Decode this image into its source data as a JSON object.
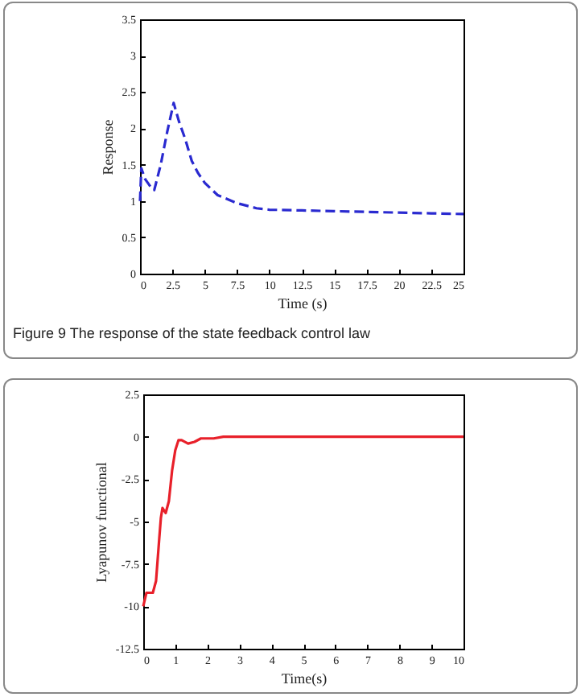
{
  "chart_data": [
    {
      "type": "line",
      "xlabel": "Time (s)",
      "ylabel": "Response",
      "annotations": [
        "Figure 9  The response of the state feedback control law"
      ],
      "xlim": [
        0,
        25
      ],
      "ylim": [
        0,
        3.5
      ],
      "xticks": [
        0,
        2.5,
        5,
        7.5,
        10,
        12.5,
        15,
        17.5,
        20,
        22.5,
        25
      ],
      "yticks": [
        0,
        0.5,
        1,
        1.5,
        2,
        2.5,
        3,
        3.5
      ],
      "grid": false,
      "line_style": "dashed",
      "series": [
        {
          "color": "#2a2ad0",
          "x": [
            0,
            0.1,
            0.4,
            0.8,
            1.1,
            1.6,
            2.1,
            2.6,
            3.0,
            3.5,
            4.0,
            4.5,
            5.0,
            6.0,
            7.5,
            9.0,
            10.0,
            12.5,
            15.0,
            17.5,
            20.0,
            22.5,
            25.0
          ],
          "values": [
            1.0,
            1.45,
            1.3,
            1.2,
            1.15,
            1.5,
            1.95,
            2.35,
            2.1,
            1.85,
            1.55,
            1.38,
            1.25,
            1.08,
            0.97,
            0.9,
            0.88,
            0.87,
            0.86,
            0.85,
            0.84,
            0.83,
            0.82
          ]
        }
      ]
    },
    {
      "type": "line",
      "xlabel": "Time(s)",
      "ylabel": "Lyapunov functional",
      "xlim": [
        0,
        10
      ],
      "ylim": [
        -12.5,
        2.5
      ],
      "xticks": [
        0,
        1,
        2,
        3,
        4,
        5,
        6,
        7,
        8,
        9,
        10
      ],
      "yticks": [
        -12.5,
        -10,
        -7.5,
        -5,
        -2.5,
        0,
        2.5
      ],
      "grid": false,
      "line_style": "solid",
      "series": [
        {
          "color": "#e8202a",
          "x": [
            0,
            0.1,
            0.2,
            0.3,
            0.4,
            0.5,
            0.55,
            0.6,
            0.7,
            0.8,
            0.9,
            1.0,
            1.1,
            1.2,
            1.4,
            1.6,
            1.8,
            2.2,
            2.5,
            10
          ],
          "values": [
            -10,
            -9.2,
            -9.2,
            -9.2,
            -8.5,
            -6,
            -4.8,
            -4.2,
            -4.5,
            -3.8,
            -2,
            -0.8,
            -0.2,
            -0.2,
            -0.4,
            -0.3,
            -0.1,
            -0.1,
            0,
            0
          ]
        }
      ]
    }
  ]
}
